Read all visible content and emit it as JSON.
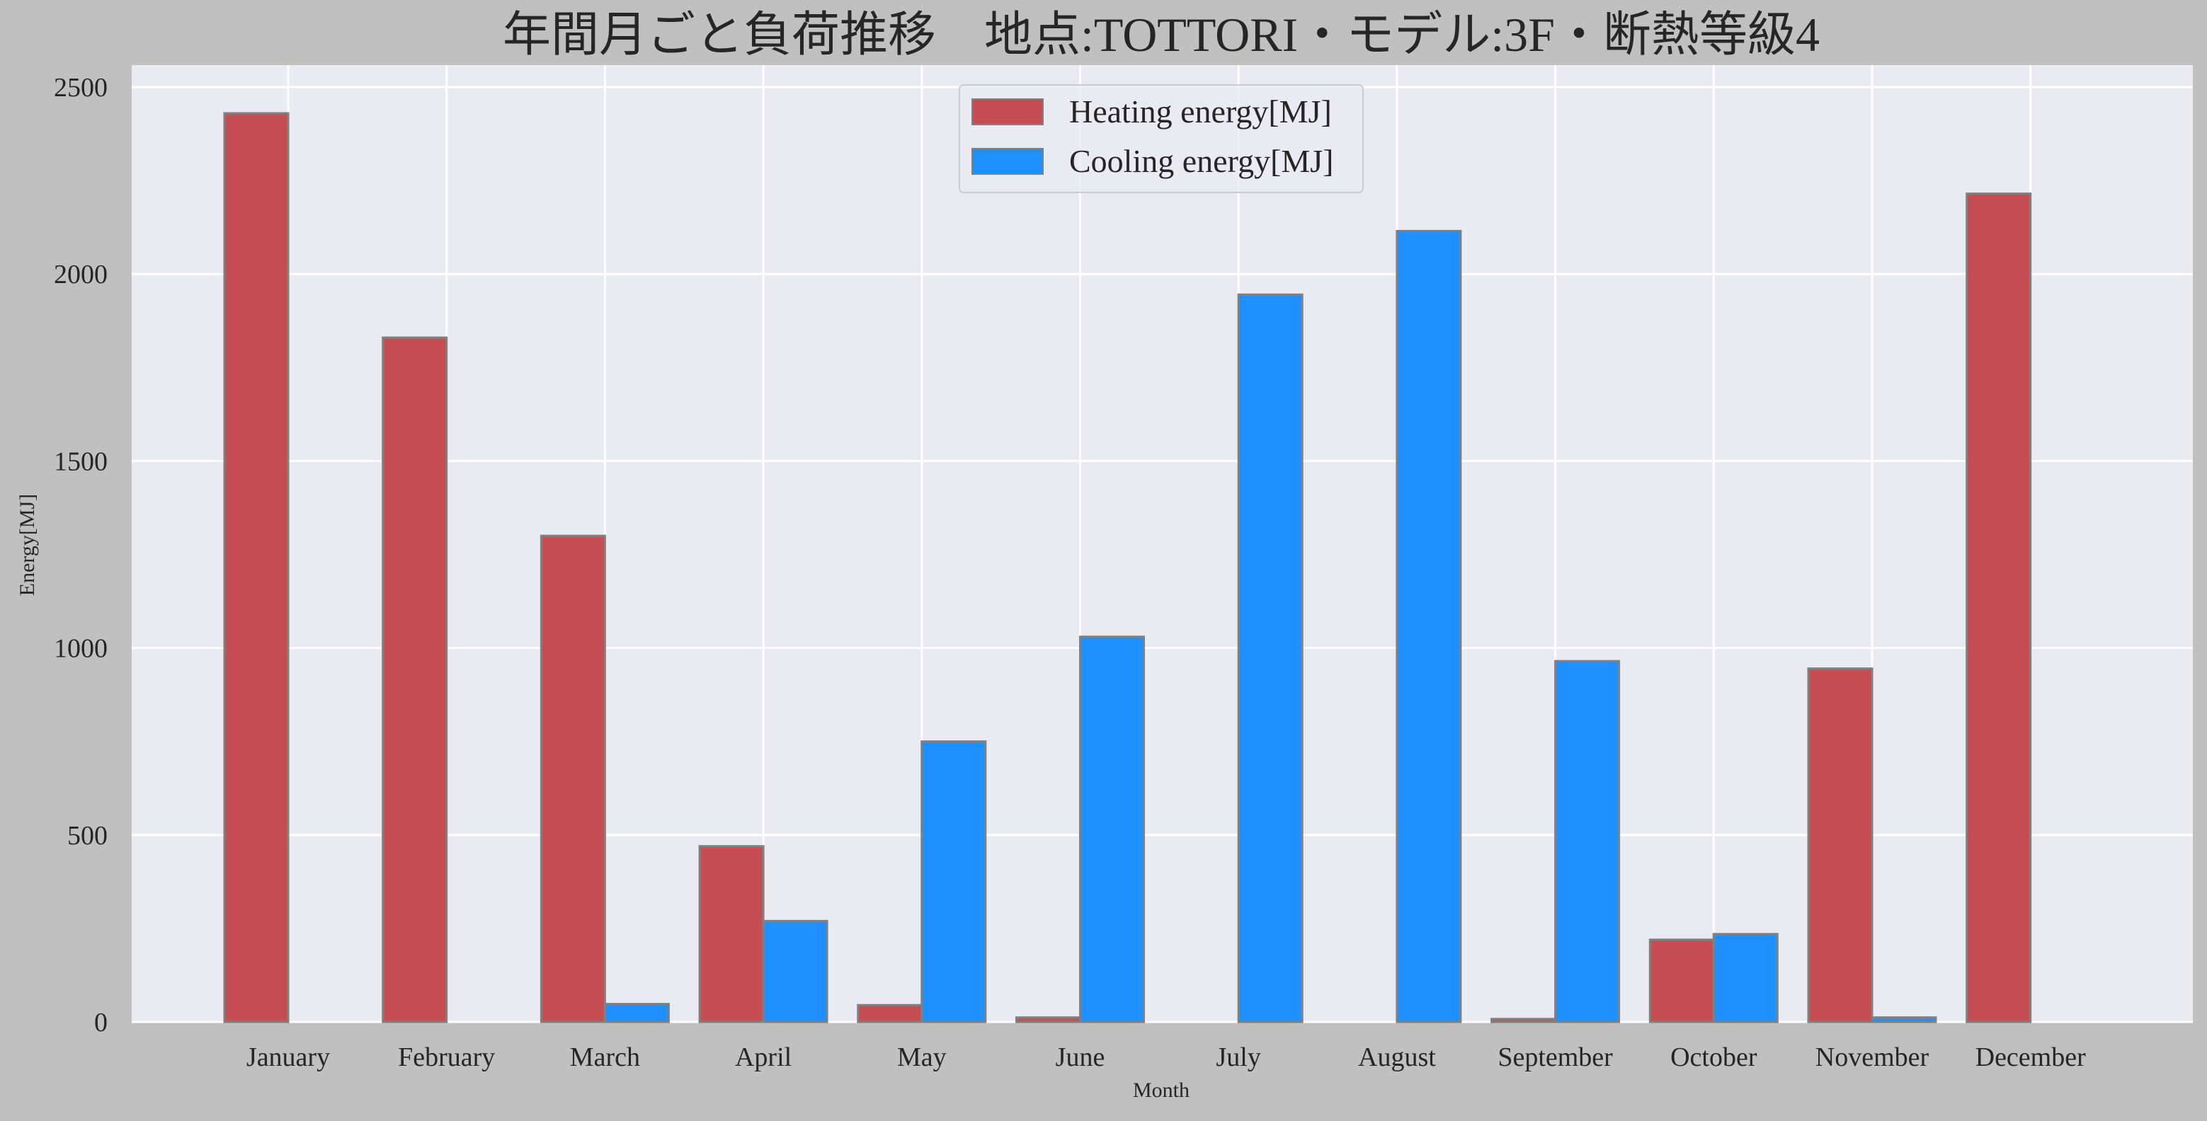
{
  "chart_data": {
    "type": "bar",
    "title": "年間月ごと負荷推移　地点:TOTTORI・モデル:3F・断熱等級4",
    "xlabel": "Month",
    "ylabel": "Energy[MJ]",
    "ylim": [
      0,
      2550
    ],
    "yticks": [
      0,
      500,
      1000,
      1500,
      2000,
      2500
    ],
    "grid": true,
    "legend_position": "top-center",
    "categories": [
      "January",
      "February",
      "March",
      "April",
      "May",
      "June",
      "July",
      "August",
      "September",
      "October",
      "November",
      "December"
    ],
    "series": [
      {
        "name": "Heating energy[MJ]",
        "color": "#c44e52",
        "values": [
          2430,
          1830,
          1300,
          470,
          45,
          12,
          0,
          0,
          8,
          220,
          945,
          2215
        ]
      },
      {
        "name": "Cooling energy[MJ]",
        "color": "#1e90ff",
        "values": [
          0,
          0,
          48,
          270,
          750,
          1030,
          1945,
          2115,
          965,
          235,
          12,
          0
        ]
      }
    ]
  }
}
